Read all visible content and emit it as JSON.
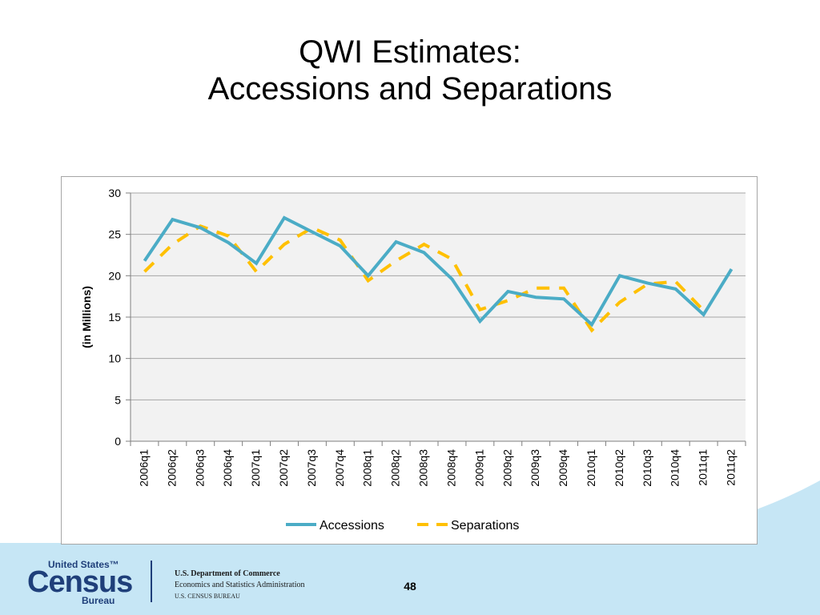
{
  "slide": {
    "title_line1": "QWI Estimates:",
    "title_line2": "Accessions and Separations",
    "page_number": "48"
  },
  "footer": {
    "logo_line1": "United States™",
    "logo_line2": "Census",
    "logo_line3": "Bureau",
    "agency_line1": "U.S. Department of Commerce",
    "agency_line2": "Economics and Statistics Administration",
    "agency_line3": "U.S. CENSUS BUREAU"
  },
  "colors": {
    "accessions": "#4bacc6",
    "separations": "#ffc000",
    "plot_background": "#f2f2f2",
    "gridline": "#a6a6a6",
    "logo_blue": "#1f3f7a",
    "footer_wave": "#c6e6f5"
  },
  "chart_data": {
    "type": "line",
    "title": "",
    "xlabel": "",
    "ylabel": "(in Millions)",
    "ylim": [
      0,
      30
    ],
    "yticks": [
      0,
      5,
      10,
      15,
      20,
      25,
      30
    ],
    "grid": true,
    "legend_position": "bottom",
    "categories": [
      "2006q1",
      "2006q2",
      "2006q3",
      "2006q4",
      "2007q1",
      "2007q2",
      "2007q3",
      "2007q4",
      "2008q1",
      "2008q2",
      "2008q3",
      "2008q4",
      "2009q1",
      "2009q2",
      "2009q3",
      "2009q4",
      "2010q1",
      "2010q2",
      "2010q3",
      "2010q4",
      "2011q1",
      "2011q2"
    ],
    "series": [
      {
        "name": "Accessions",
        "style": "solid",
        "values": [
          21.8,
          26.8,
          25.8,
          24.0,
          21.5,
          27.0,
          25.3,
          23.6,
          20.0,
          24.1,
          22.8,
          19.6,
          14.5,
          18.1,
          17.4,
          17.2,
          14.1,
          20.0,
          19.1,
          18.4,
          15.3,
          20.8
        ]
      },
      {
        "name": "Separations",
        "style": "dashed",
        "values": [
          20.5,
          23.8,
          26.0,
          24.8,
          20.5,
          23.8,
          25.8,
          24.3,
          19.4,
          21.8,
          23.8,
          22.0,
          15.9,
          17.0,
          18.5,
          18.5,
          13.4,
          16.8,
          19.0,
          19.3,
          15.8,
          null
        ]
      }
    ]
  }
}
